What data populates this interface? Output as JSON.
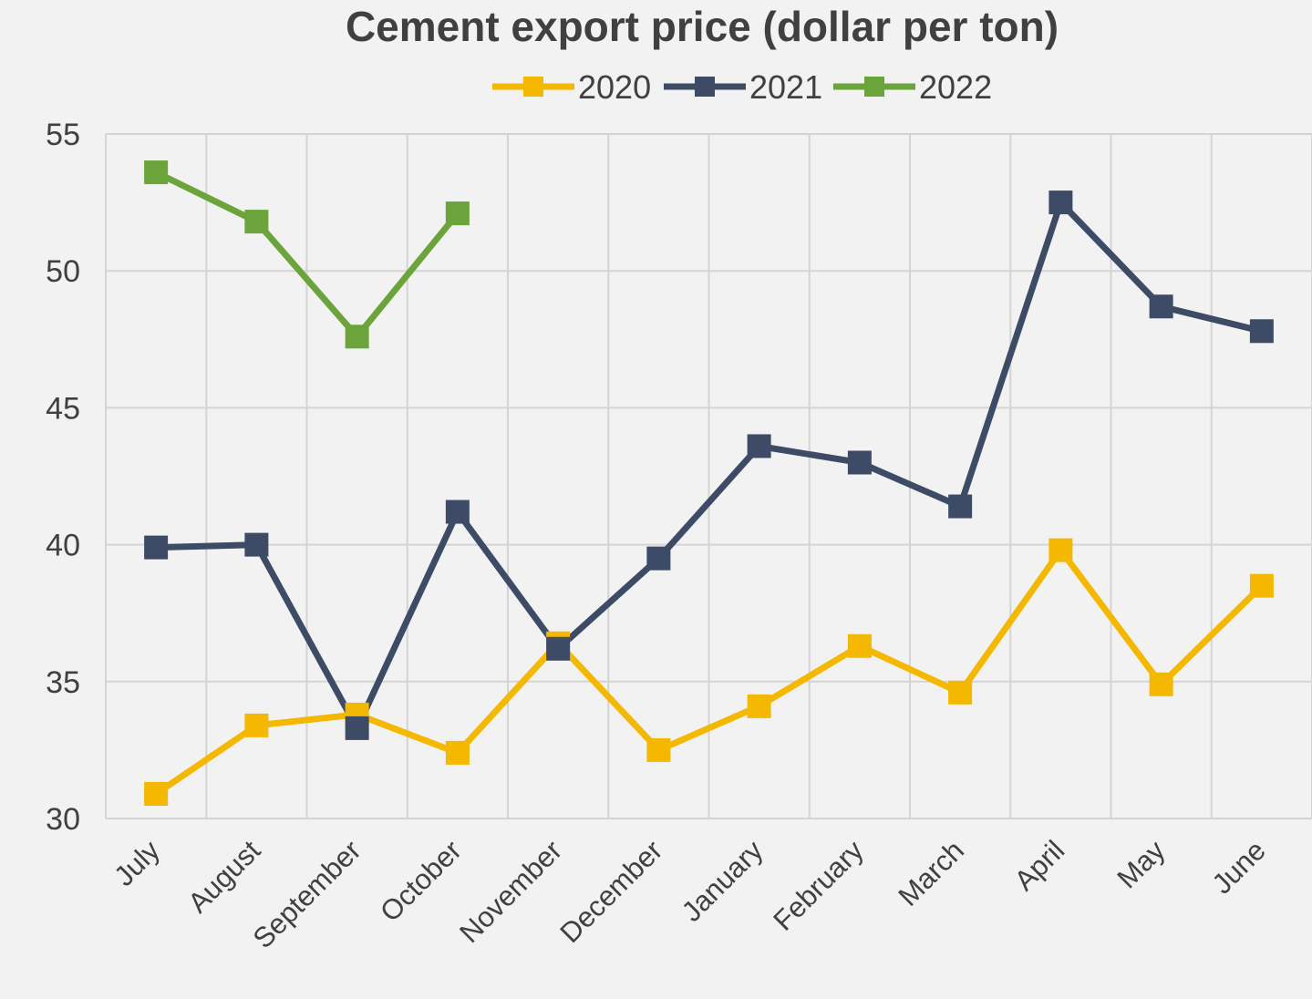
{
  "chart_data": {
    "type": "line",
    "title": "Cement export price (dollar per ton)",
    "xlabel": "",
    "ylabel": "",
    "categories": [
      "July",
      "August",
      "September",
      "October",
      "November",
      "December",
      "January",
      "February",
      "March",
      "April",
      "May",
      "June"
    ],
    "ylim": [
      30,
      55
    ],
    "yticks": [
      30,
      35,
      40,
      45,
      50,
      55
    ],
    "grid": true,
    "legend_position": "top-center",
    "series": [
      {
        "name": "2020",
        "color": "#f5b800",
        "values": [
          30.9,
          33.4,
          33.8,
          32.4,
          36.4,
          32.5,
          34.1,
          36.3,
          34.6,
          39.8,
          34.9,
          38.5
        ]
      },
      {
        "name": "2021",
        "color": "#3d4b66",
        "values": [
          39.9,
          40.0,
          33.3,
          41.2,
          36.2,
          39.5,
          43.6,
          43.0,
          41.4,
          52.5,
          48.7,
          47.8
        ]
      },
      {
        "name": "2022",
        "color": "#6aa43a",
        "values": [
          53.6,
          51.8,
          47.6,
          52.1,
          null,
          null,
          null,
          null,
          null,
          null,
          null,
          null
        ]
      }
    ]
  }
}
